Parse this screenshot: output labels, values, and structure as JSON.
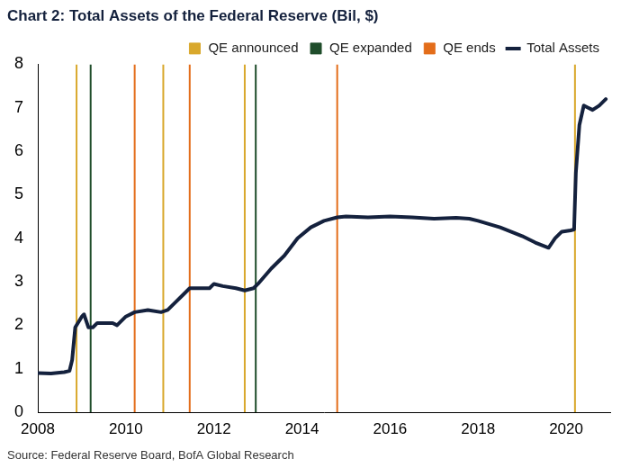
{
  "chart_data": {
    "type": "line",
    "title": "Chart 2: Total Assets of the Federal Reserve (Bil, $)",
    "source": "Source: Federal Reserve Board, BofA Global Research",
    "xlim": [
      2008,
      2021
    ],
    "xticks": [
      2008,
      2010,
      2012,
      2014,
      2016,
      2018,
      2020
    ],
    "ylim": [
      0,
      8
    ],
    "yticks": [
      0,
      1,
      2,
      3,
      4,
      5,
      6,
      7,
      8
    ],
    "grid": false,
    "legend": "top-right",
    "series": [
      {
        "name": "QE announced",
        "color": "#d9a82c",
        "type": "vline",
        "x": [
          2008.88,
          2010.85,
          2012.7,
          2020.2
        ]
      },
      {
        "name": "QE expanded",
        "color": "#1f4d2b",
        "type": "vline",
        "x": [
          2009.2,
          2012.95
        ]
      },
      {
        "name": "QE ends",
        "color": "#e36d1a",
        "type": "vline",
        "x": [
          2010.2,
          2011.45,
          2014.8
        ]
      },
      {
        "name": "Total Assets",
        "color": "#14213d",
        "type": "line",
        "x": [
          2008.0,
          2008.3,
          2008.6,
          2008.72,
          2008.78,
          2008.85,
          2009.0,
          2009.05,
          2009.15,
          2009.25,
          2009.35,
          2009.5,
          2009.7,
          2009.8,
          2010.0,
          2010.2,
          2010.5,
          2010.8,
          2010.95,
          2011.1,
          2011.3,
          2011.45,
          2011.7,
          2011.9,
          2012.0,
          2012.2,
          2012.5,
          2012.7,
          2012.9,
          2013.0,
          2013.3,
          2013.6,
          2013.9,
          2014.2,
          2014.5,
          2014.8,
          2015.0,
          2015.5,
          2016.0,
          2016.5,
          2017.0,
          2017.5,
          2017.8,
          2018.0,
          2018.5,
          2019.0,
          2019.3,
          2019.6,
          2019.75,
          2019.9,
          2020.1,
          2020.18,
          2020.22,
          2020.3,
          2020.4,
          2020.5,
          2020.6,
          2020.75,
          2020.9
        ],
        "values": [
          0.9,
          0.89,
          0.92,
          0.95,
          1.2,
          1.95,
          2.2,
          2.25,
          1.95,
          1.95,
          2.05,
          2.05,
          2.05,
          2.0,
          2.2,
          2.3,
          2.35,
          2.3,
          2.35,
          2.5,
          2.7,
          2.85,
          2.85,
          2.85,
          2.95,
          2.9,
          2.85,
          2.8,
          2.85,
          2.95,
          3.3,
          3.6,
          4.0,
          4.25,
          4.4,
          4.48,
          4.5,
          4.48,
          4.5,
          4.48,
          4.45,
          4.47,
          4.45,
          4.4,
          4.25,
          4.05,
          3.9,
          3.78,
          4.0,
          4.15,
          4.18,
          4.2,
          5.5,
          6.6,
          7.05,
          7.0,
          6.95,
          7.05,
          7.2
        ]
      }
    ]
  }
}
